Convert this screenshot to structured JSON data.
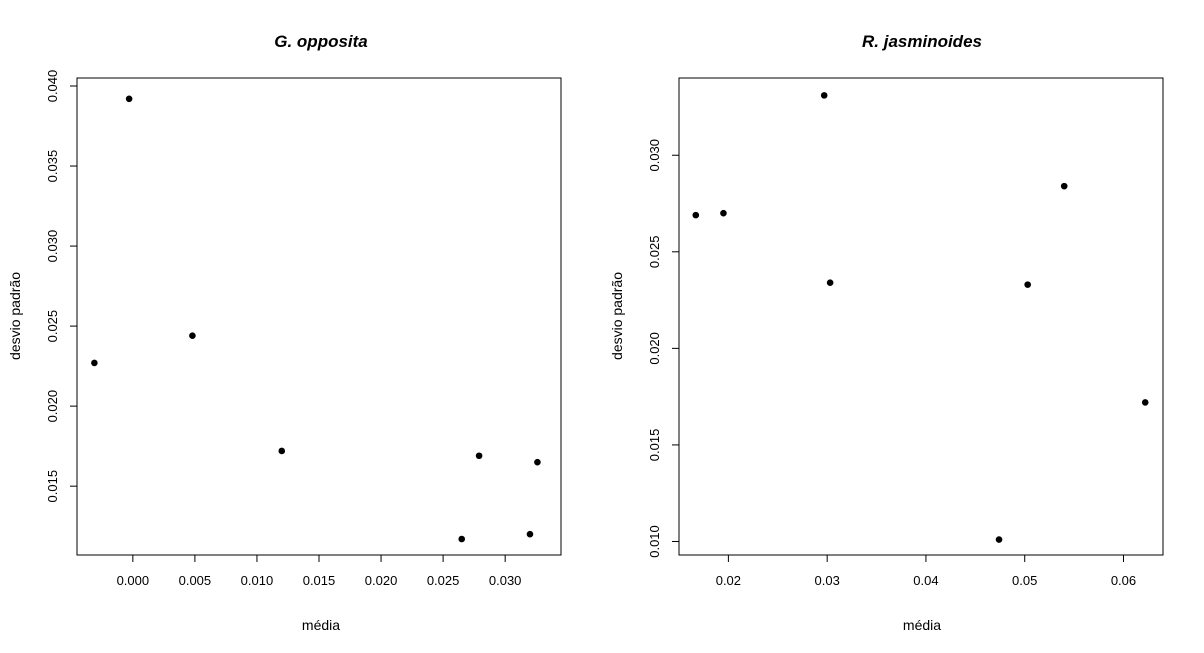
{
  "chart_data": [
    {
      "type": "scatter",
      "title": "G. opposita",
      "xlabel": "média",
      "ylabel": "desvio padrão",
      "xlim": [
        -0.0045,
        0.0345
      ],
      "ylim": [
        0.0107,
        0.0405
      ],
      "xticks": [
        0.0,
        0.005,
        0.01,
        0.015,
        0.02,
        0.025,
        0.03
      ],
      "xtick_labels": [
        "0.000",
        "0.005",
        "0.010",
        "0.015",
        "0.020",
        "0.025",
        "0.030"
      ],
      "yticks": [
        0.015,
        0.02,
        0.025,
        0.03,
        0.035,
        0.04
      ],
      "ytick_labels": [
        "0.015",
        "0.020",
        "0.025",
        "0.030",
        "0.035",
        "0.040"
      ],
      "grid": false,
      "points": [
        {
          "x": -0.0031,
          "y": 0.0227
        },
        {
          "x": -0.0003,
          "y": 0.0392
        },
        {
          "x": 0.0048,
          "y": 0.0244
        },
        {
          "x": 0.012,
          "y": 0.0172
        },
        {
          "x": 0.0265,
          "y": 0.0117
        },
        {
          "x": 0.0279,
          "y": 0.0169
        },
        {
          "x": 0.032,
          "y": 0.012
        },
        {
          "x": 0.0326,
          "y": 0.0165
        }
      ]
    },
    {
      "type": "scatter",
      "title": "R. jasminoides",
      "xlabel": "média",
      "ylabel": "desvio padrão",
      "xlim": [
        0.015,
        0.064
      ],
      "ylim": [
        0.0093,
        0.034
      ],
      "xticks": [
        0.02,
        0.03,
        0.04,
        0.05,
        0.06
      ],
      "xtick_labels": [
        "0.02",
        "0.03",
        "0.04",
        "0.05",
        "0.06"
      ],
      "yticks": [
        0.01,
        0.015,
        0.02,
        0.025,
        0.03
      ],
      "ytick_labels": [
        "0.010",
        "0.015",
        "0.020",
        "0.025",
        "0.030"
      ],
      "grid": false,
      "points": [
        {
          "x": 0.0167,
          "y": 0.0269
        },
        {
          "x": 0.0195,
          "y": 0.027
        },
        {
          "x": 0.0297,
          "y": 0.0331
        },
        {
          "x": 0.0303,
          "y": 0.0234
        },
        {
          "x": 0.0474,
          "y": 0.0101
        },
        {
          "x": 0.0503,
          "y": 0.0233
        },
        {
          "x": 0.054,
          "y": 0.0284
        },
        {
          "x": 0.0622,
          "y": 0.0172
        }
      ]
    }
  ]
}
